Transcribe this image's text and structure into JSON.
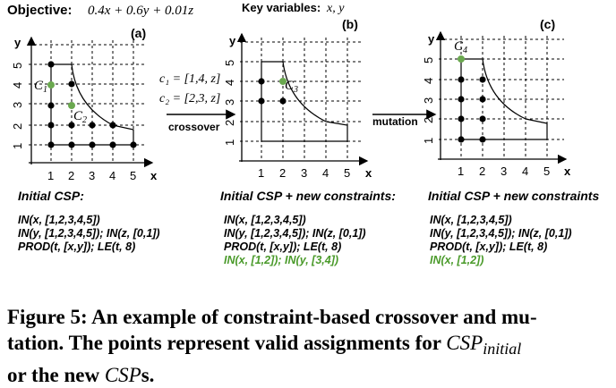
{
  "header": {
    "objective_label": "Objective:",
    "objective_formula": "0.4x + 0.6y + 0.01z",
    "key_variables_label": "Key variables:",
    "key_variables": "x, y"
  },
  "panels": [
    {
      "tag": "(a)",
      "title": "Initial CSP:",
      "points": [
        "C1",
        "C2"
      ],
      "constraints": [
        {
          "text": "IN(x, [1,2,3,4,5])",
          "new": false
        },
        {
          "text": "IN(y, [1,2,3,4,5]); IN(z, [0,1])",
          "new": false
        },
        {
          "text": "PROD(t, [x,y]); LE(t, 8)",
          "new": false
        }
      ]
    },
    {
      "tag": "(b)",
      "title": "Initial CSP + new constraints:",
      "points": [
        "C3"
      ],
      "constraints": [
        {
          "text": "IN(x, [1,2,3,4,5])",
          "new": false
        },
        {
          "text": "IN(y, [1,2,3,4,5]); IN(z, [0,1])",
          "new": false
        },
        {
          "text": "PROD(t, [x,y]); LE(t, 8)",
          "new": false
        },
        {
          "text": "IN(x, [1,2]); IN(y, [3,4])",
          "new": true
        }
      ]
    },
    {
      "tag": "(c)",
      "title": "Initial CSP + new constraints",
      "points": [
        "C4"
      ],
      "constraints": [
        {
          "text": "IN(x, [1,2,3,4,5])",
          "new": false
        },
        {
          "text": "IN(y, [1,2,3,4,5]); IN(z, [0,1])",
          "new": false
        },
        {
          "text": "PROD(t, [x,y]); LE(t, 8)",
          "new": false
        },
        {
          "text": "IN(x, [1,2])",
          "new": true
        }
      ]
    }
  ],
  "axes": {
    "x_label": "x",
    "y_label": "y",
    "ticks": [
      "1",
      "2",
      "3",
      "4",
      "5"
    ]
  },
  "arrows": {
    "crossover_label": "crossover",
    "c1_assign": "c₁ = [1,4, z]",
    "c2_assign": "c₂ = [2,3, z]",
    "mutation_label": "mutation"
  },
  "colors": {
    "valid_point": "#000000",
    "highlight_point": "#6aa84f",
    "new_constraint": "#4a9a2a"
  },
  "caption": {
    "line1": "Figure 5: An example of constraint-based crossover and mu-",
    "line2a": "tation. The points represent valid assignments for",
    "csp": "CSP",
    "csp_sub": "initial",
    "line3a": "or the new",
    "csps": "CSP",
    "line3b": "s."
  }
}
